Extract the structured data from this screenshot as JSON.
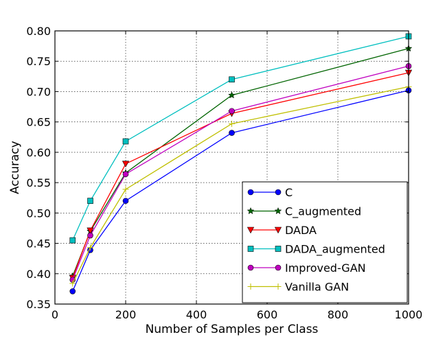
{
  "chart_data": {
    "type": "line",
    "title": "",
    "xlabel": "Number of Samples per Class",
    "ylabel": "Accuracy",
    "xlim": [
      0,
      1000
    ],
    "ylim": [
      0.35,
      0.8
    ],
    "xticks": [
      0,
      200,
      400,
      600,
      800,
      1000
    ],
    "xtick_labels": [
      "0",
      "200",
      "400",
      "600",
      "800",
      "1000"
    ],
    "yticks": [
      0.35,
      0.4,
      0.45,
      0.5,
      0.55,
      0.6,
      0.65,
      0.7,
      0.75,
      0.8
    ],
    "ytick_labels": [
      "0.35",
      "0.40",
      "0.45",
      "0.50",
      "0.55",
      "0.60",
      "0.65",
      "0.70",
      "0.75",
      "0.80"
    ],
    "grid": true,
    "legend_position": "bottom-right",
    "x": [
      50,
      100,
      200,
      500,
      1000
    ],
    "series": [
      {
        "name": "C",
        "values": [
          0.371,
          0.439,
          0.52,
          0.632,
          0.702
        ],
        "color": "#0000ff",
        "marker": "circle"
      },
      {
        "name": "C_augmented",
        "values": [
          0.396,
          0.47,
          0.566,
          0.694,
          0.771
        ],
        "color": "#006400",
        "marker": "star"
      },
      {
        "name": "DADA",
        "values": [
          0.393,
          0.471,
          0.581,
          0.664,
          0.731
        ],
        "color": "#ff0000",
        "marker": "triangle-down"
      },
      {
        "name": "DADA_augmented",
        "values": [
          0.455,
          0.52,
          0.618,
          0.72,
          0.791
        ],
        "color": "#00bfbf",
        "marker": "square"
      },
      {
        "name": "Improved-GAN",
        "values": [
          0.39,
          0.463,
          0.564,
          0.668,
          0.742
        ],
        "color": "#bf00bf",
        "marker": "circle"
      },
      {
        "name": "Vanilla GAN",
        "values": [
          0.384,
          0.443,
          0.539,
          0.647,
          0.708
        ],
        "color": "#bfbf00",
        "marker": "plus"
      }
    ]
  }
}
